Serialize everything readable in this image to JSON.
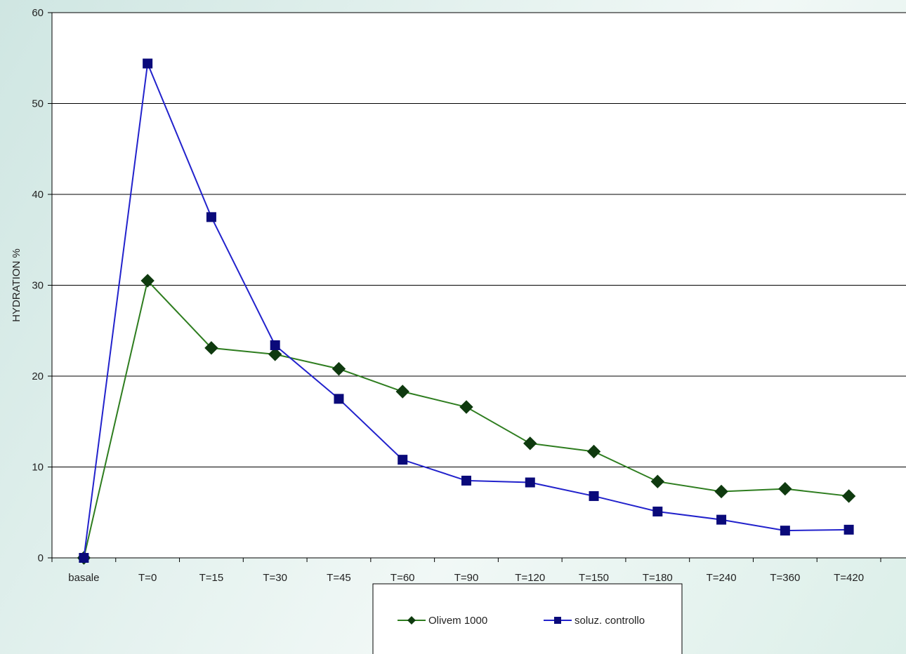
{
  "chart_data": {
    "type": "line",
    "title": "",
    "xlabel": "",
    "ylabel": "HYDRATION %",
    "ylim": [
      0,
      60
    ],
    "yticks": [
      "0",
      "10",
      "20",
      "30",
      "40",
      "50",
      "60"
    ],
    "categories": [
      "basale",
      "T=0",
      "T=15",
      "T=30",
      "T=45",
      "T=60",
      "T=90",
      "T=120",
      "T=150",
      "T=180",
      "T=240",
      "T=360",
      "T=420"
    ],
    "grid": "horizontal",
    "legend_position": "bottom",
    "series": [
      {
        "name": "Olivem 1000",
        "marker": "diamond",
        "color": "#2e7d1f",
        "marker_color": "#0f3a0f",
        "values": [
          0,
          30.5,
          23.1,
          22.4,
          20.8,
          18.3,
          16.6,
          12.6,
          11.7,
          8.4,
          7.3,
          7.6,
          6.8
        ]
      },
      {
        "name": "soluz. controllo",
        "marker": "square",
        "color": "#2222cc",
        "marker_color": "#0a0a7a",
        "values": [
          0,
          54.4,
          37.5,
          23.4,
          17.5,
          10.8,
          8.5,
          8.3,
          6.8,
          5.1,
          4.2,
          3.0,
          3.1
        ]
      }
    ]
  }
}
